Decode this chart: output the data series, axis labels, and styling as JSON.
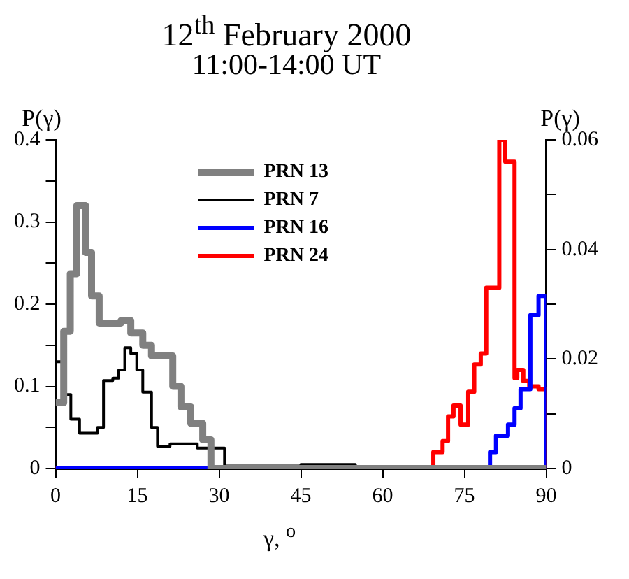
{
  "chart_data": {
    "type": "step",
    "title": "12$^{th}$ February 2000",
    "subtitle": "11:00-14:00 UT",
    "xlabel": "γ, $^{o}$",
    "ylabel": "P(γ)",
    "y2label": "P(γ)",
    "legend": "top",
    "xlim": [
      0,
      90
    ],
    "xticks": [
      0,
      15,
      30,
      45,
      60,
      75,
      90
    ],
    "ylim": [
      0,
      0.4
    ],
    "yticks": [
      0,
      {
        "value": 0.05,
        "label": null
      },
      0.1,
      {
        "value": 0.15,
        "label": null
      },
      0.2,
      {
        "value": 0.25,
        "label": null
      },
      0.3,
      {
        "value": 0.35,
        "label": null
      },
      0.4
    ],
    "y2lim": [
      0,
      0.06
    ],
    "y2ticks": [
      0,
      {
        "value": 0.01,
        "label": null
      },
      0.02,
      {
        "value": 0.03,
        "label": null
      },
      0.04,
      {
        "value": 0.05,
        "label": null
      },
      0.06
    ],
    "series": [
      {
        "name": "PRN 13",
        "color": "#808080",
        "x": [
          0,
          1.5,
          2.7,
          3.9,
          5.5,
          6.6,
          8,
          12,
          13.8,
          16,
          17.6,
          21.5,
          23,
          24.8,
          27,
          28.5,
          90
        ],
        "values": [
          0.08,
          0.167,
          0.237,
          0.32,
          0.263,
          0.21,
          0.177,
          0.18,
          0.165,
          0.15,
          0.137,
          0.1,
          0.075,
          0.055,
          0.035,
          0,
          0
        ]
      },
      {
        "name": "PRN 7",
        "color": "#000000",
        "x": [
          0,
          1.6,
          2.8,
          4.4,
          7.7,
          8.8,
          10.5,
          11.6,
          12.7,
          13.8,
          14.9,
          16,
          17.6,
          18.7,
          21,
          26,
          31,
          45,
          55,
          90
        ],
        "values": [
          0.13,
          0.09,
          0.06,
          0.043,
          0.05,
          0.107,
          0.11,
          0.12,
          0.147,
          0.14,
          0.12,
          0.093,
          0.05,
          0.027,
          0.03,
          0.025,
          0.003,
          0.005,
          0,
          0
        ]
      },
      {
        "name": "PRN 16",
        "color": "#0000ff",
        "axis": "y2",
        "x": [
          0,
          79.7,
          80.8,
          83,
          84.2,
          85.3,
          87.1,
          88.6,
          90
        ],
        "values": [
          0,
          0.003,
          0.006,
          0.008,
          0.011,
          0.0145,
          0.028,
          0.0315,
          0
        ]
      },
      {
        "name": "PRN 24",
        "color": "#ff0000",
        "axis": "y2",
        "x": [
          0,
          69.3,
          71,
          72,
          73,
          74.3,
          75.7,
          76.8,
          78,
          79,
          81.4,
          82.5,
          84.2,
          84.7,
          85.8,
          86.9,
          88.6,
          90
        ],
        "values": [
          0,
          0.003,
          0.005,
          0.0095,
          0.0115,
          0.008,
          0.014,
          0.019,
          0.021,
          0.033,
          0.06,
          0.056,
          0.0165,
          0.018,
          0.016,
          0.015,
          0.0145,
          0
        ]
      }
    ]
  }
}
